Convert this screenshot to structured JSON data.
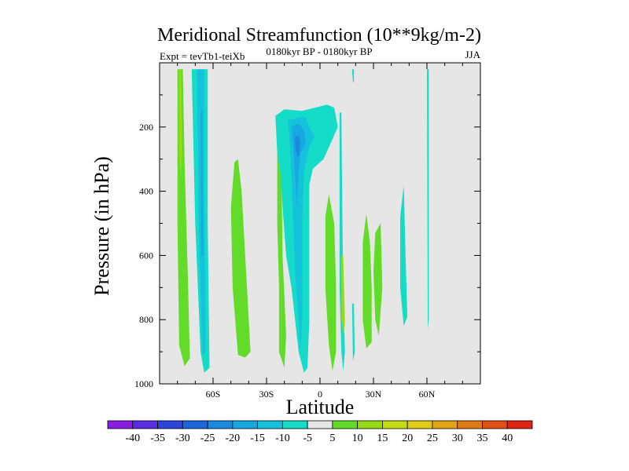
{
  "chart_data": {
    "type": "contour",
    "title": "Meridional Streamfunction (10**9kg/m-2)",
    "subtitle_left": "Expt = tevTb1-teiXb",
    "subtitle_center": "0180kyr BP - 0180kyr BP",
    "subtitle_right": "JJA",
    "xlabel": "Latitude",
    "ylabel": "Pressure (in hPa)",
    "xlim": [
      -90,
      90
    ],
    "ylim": [
      1000,
      0
    ],
    "x_ticks": [
      {
        "value": -60,
        "label": "60S"
      },
      {
        "value": -30,
        "label": "30S"
      },
      {
        "value": 0,
        "label": "0"
      },
      {
        "value": 30,
        "label": "30N"
      },
      {
        "value": 60,
        "label": "60N"
      }
    ],
    "y_ticks": [
      {
        "value": 200,
        "label": "200"
      },
      {
        "value": 400,
        "label": "400"
      },
      {
        "value": 600,
        "label": "600"
      },
      {
        "value": 800,
        "label": "800"
      },
      {
        "value": 1000,
        "label": "1000"
      }
    ],
    "colorbar": {
      "labels": [
        "-40",
        "-35",
        "-30",
        "-25",
        "-20",
        "-15",
        "-10",
        "-5",
        "5",
        "10",
        "15",
        "20",
        "25",
        "30",
        "35",
        "40"
      ],
      "colors": [
        "#8a1ee0",
        "#5a2ee0",
        "#2c46dc",
        "#1e66dc",
        "#1a8ae0",
        "#16a8e0",
        "#14c2dc",
        "#14dcc8",
        "#e6e6e6",
        "#62dc28",
        "#96dc14",
        "#c4dc14",
        "#e0cc14",
        "#e0a414",
        "#e07a14",
        "#e05014",
        "#e02414"
      ]
    },
    "contours": [
      {
        "level": 10,
        "color": "#62dc28",
        "points": [
          [
            -80,
            20
          ],
          [
            -77,
            20
          ],
          [
            -76,
            300
          ],
          [
            -74,
            700
          ],
          [
            -73,
            920
          ],
          [
            -76,
            945
          ],
          [
            -79,
            880
          ],
          [
            -80,
            500
          ]
        ]
      },
      {
        "level": 15,
        "color": "#96dc14",
        "points": [
          [
            -79,
            20
          ],
          [
            -78,
            20
          ],
          [
            -77.5,
            250
          ],
          [
            -78,
            350
          ],
          [
            -79,
            300
          ]
        ]
      },
      {
        "level": -5,
        "color": "#14dcc8",
        "points": [
          [
            -72,
            20
          ],
          [
            -63,
            20
          ],
          [
            -63,
            500
          ],
          [
            -62,
            950
          ],
          [
            -65,
            965
          ],
          [
            -67,
            900
          ],
          [
            -70,
            500
          ]
        ]
      },
      {
        "level": -10,
        "color": "#14c2dc",
        "points": [
          [
            -69,
            20
          ],
          [
            -65,
            20
          ],
          [
            -65,
            400
          ],
          [
            -64,
            900
          ],
          [
            -66,
            910
          ],
          [
            -68,
            500
          ]
        ]
      },
      {
        "level": -15,
        "color": "#16a8e0",
        "points": [
          [
            -67,
            150
          ],
          [
            -66,
            150
          ],
          [
            -65.5,
            600
          ],
          [
            -66.5,
            600
          ]
        ]
      },
      {
        "level": 10,
        "color": "#62dc28",
        "points": [
          [
            -48,
            310
          ],
          [
            -46,
            300
          ],
          [
            -44,
            400
          ],
          [
            -41,
            700
          ],
          [
            -39,
            900
          ],
          [
            -42,
            918
          ],
          [
            -46,
            910
          ],
          [
            -49,
            700
          ],
          [
            -50,
            450
          ]
        ]
      },
      {
        "level": 10,
        "color": "#62dc28",
        "points": [
          [
            -23,
            700
          ],
          [
            -21,
            600
          ],
          [
            -19,
            850
          ],
          [
            -20,
            950
          ],
          [
            -23,
            900
          ]
        ]
      },
      {
        "level": 10,
        "color": "#62dc28",
        "points": [
          [
            -24,
            180
          ],
          [
            -22,
            180
          ],
          [
            -21,
            600
          ],
          [
            -23,
            700
          ],
          [
            -24,
            500
          ]
        ]
      },
      {
        "level": -5,
        "color": "#14dcc8",
        "points": [
          [
            -25,
            165
          ],
          [
            -20,
            145
          ],
          [
            -10,
            150
          ],
          [
            -3,
            140
          ],
          [
            4,
            130
          ],
          [
            8,
            140
          ],
          [
            10,
            200
          ],
          [
            6,
            250
          ],
          [
            2,
            300
          ],
          [
            -4,
            330
          ],
          [
            -6,
            380
          ],
          [
            -6,
            600
          ],
          [
            -6,
            800
          ],
          [
            -7,
            950
          ],
          [
            -9,
            965
          ],
          [
            -12,
            900
          ],
          [
            -14,
            800
          ],
          [
            -16,
            700
          ],
          [
            -19,
            600
          ],
          [
            -21,
            450
          ],
          [
            -22,
            350
          ],
          [
            -24,
            280
          ]
        ]
      },
      {
        "level": -10,
        "color": "#14c2dc",
        "points": [
          [
            -18,
            180
          ],
          [
            -12,
            170
          ],
          [
            -8,
            170
          ],
          [
            -6,
            200
          ],
          [
            -3,
            230
          ],
          [
            -6,
            260
          ],
          [
            -9,
            340
          ],
          [
            -10,
            500
          ],
          [
            -10,
            800
          ],
          [
            -11,
            900
          ],
          [
            -12,
            800
          ],
          [
            -14,
            650
          ],
          [
            -15,
            500
          ],
          [
            -16,
            350
          ],
          [
            -17,
            250
          ]
        ]
      },
      {
        "level": -15,
        "color": "#16a8e0",
        "points": [
          [
            -16,
            200
          ],
          [
            -12,
            190
          ],
          [
            -9,
            210
          ],
          [
            -8,
            250
          ],
          [
            -11,
            280
          ],
          [
            -12,
            340
          ],
          [
            -13,
            450
          ],
          [
            -14,
            350
          ],
          [
            -15,
            260
          ]
        ]
      },
      {
        "level": -20,
        "color": "#1a8ae0",
        "points": [
          [
            -14,
            230
          ],
          [
            -12,
            225
          ],
          [
            -11,
            250
          ],
          [
            -11.5,
            290
          ],
          [
            -13,
            290
          ],
          [
            -14,
            260
          ]
        ]
      },
      {
        "level": -5,
        "color": "#14dcc8",
        "points": [
          [
            11,
            155
          ],
          [
            12,
            155
          ],
          [
            12.5,
            450
          ],
          [
            13,
            700
          ],
          [
            14,
            900
          ],
          [
            13,
            960
          ],
          [
            12,
            900
          ],
          [
            11,
            700
          ],
          [
            11,
            400
          ]
        ]
      },
      {
        "level": 10,
        "color": "#62dc28",
        "points": [
          [
            3,
            480
          ],
          [
            5,
            410
          ],
          [
            8,
            500
          ],
          [
            9,
            700
          ],
          [
            9,
            900
          ],
          [
            7,
            960
          ],
          [
            5,
            880
          ],
          [
            3,
            700
          ]
        ]
      },
      {
        "level": 15,
        "color": "#96dc14",
        "points": [
          [
            12,
            600
          ],
          [
            13,
            600
          ],
          [
            14,
            800
          ],
          [
            13.5,
            850
          ],
          [
            12,
            800
          ]
        ]
      },
      {
        "level": -5,
        "color": "#14dcc8",
        "points": [
          [
            18,
            20
          ],
          [
            19,
            20
          ],
          [
            19,
            60
          ],
          [
            18.5,
            60
          ]
        ]
      },
      {
        "level": -5,
        "color": "#14dcc8",
        "points": [
          [
            18,
            750
          ],
          [
            19,
            750
          ],
          [
            19.5,
            900
          ],
          [
            18.5,
            930
          ]
        ]
      },
      {
        "level": 10,
        "color": "#62dc28",
        "points": [
          [
            24,
            560
          ],
          [
            26,
            470
          ],
          [
            28,
            560
          ],
          [
            29,
            700
          ],
          [
            29,
            870
          ],
          [
            26,
            890
          ],
          [
            24,
            800
          ]
        ]
      },
      {
        "level": 10,
        "color": "#62dc28",
        "points": [
          [
            31,
            530
          ],
          [
            34,
            500
          ],
          [
            35,
            700
          ],
          [
            33,
            850
          ],
          [
            31,
            800
          ],
          [
            30,
            650
          ]
        ]
      },
      {
        "level": -5,
        "color": "#14dcc8",
        "points": [
          [
            45,
            480
          ],
          [
            47,
            380
          ],
          [
            48,
            600
          ],
          [
            49,
            790
          ],
          [
            47,
            820
          ],
          [
            45,
            700
          ]
        ]
      },
      {
        "level": -5,
        "color": "#14dcc8",
        "points": [
          [
            60,
            20
          ],
          [
            61,
            20
          ],
          [
            61,
            500
          ],
          [
            61,
            800
          ],
          [
            60.5,
            830
          ]
        ]
      }
    ]
  }
}
